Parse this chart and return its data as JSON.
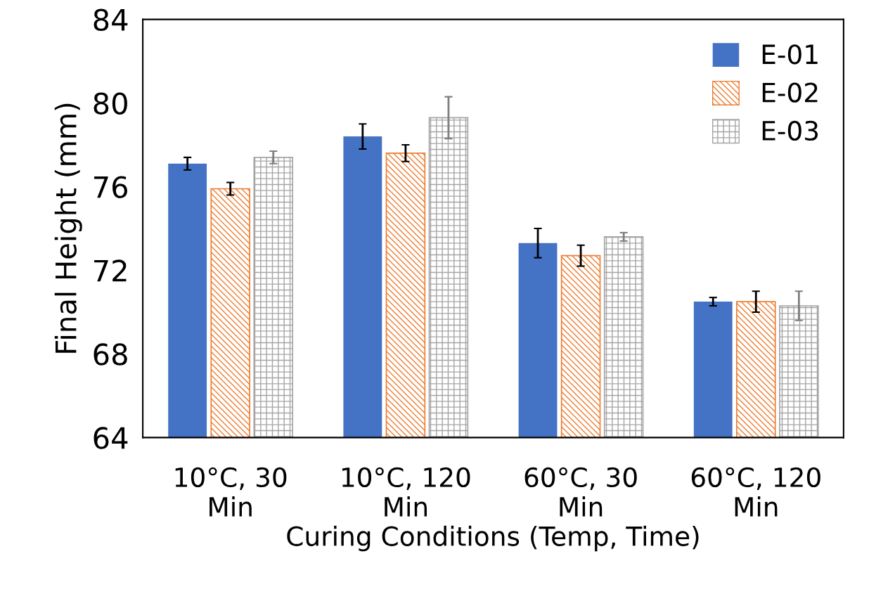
{
  "chart_data": {
    "type": "bar",
    "xlabel": "Curing Conditions (Temp, Time)",
    "ylabel": "Final Height (mm)",
    "categories": [
      "10°C, 30\nMin",
      "10°C, 120\nMin",
      "60°C, 30\nMin",
      "60°C, 120\nMin"
    ],
    "series": [
      {
        "name": "E-01",
        "color": "#4472c4",
        "values": [
          77.1,
          78.4,
          73.3,
          70.5
        ],
        "errors": [
          0.3,
          0.6,
          0.7,
          0.2
        ]
      },
      {
        "name": "E-02",
        "color": "#ed7d31",
        "values": [
          75.9,
          77.6,
          72.7,
          70.5
        ],
        "errors": [
          0.3,
          0.4,
          0.5,
          0.5
        ]
      },
      {
        "name": "E-03",
        "color": "#a5a5a5",
        "values": [
          77.4,
          79.3,
          73.6,
          70.3
        ],
        "errors": [
          0.3,
          1.0,
          0.2,
          0.7
        ]
      }
    ],
    "ylim": [
      64,
      84
    ],
    "yticks": [
      64,
      68,
      72,
      76,
      80,
      84
    ],
    "grid": false,
    "legend": "top right"
  }
}
